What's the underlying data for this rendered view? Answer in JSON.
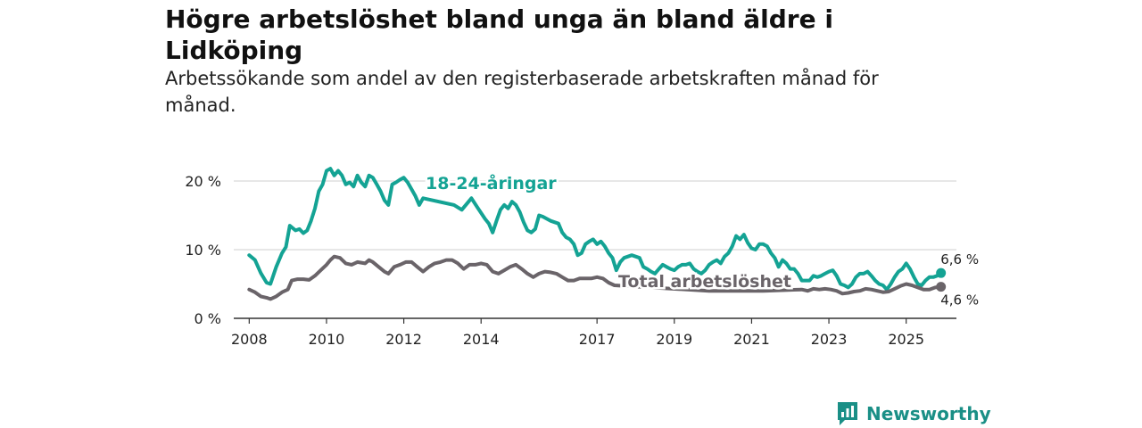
{
  "title": "Högre arbetslöshet bland unga än bland äldre i Lidköping",
  "subtitle": "Arbetssökande som andel av den registerbaserade arbetskraften månad för månad.",
  "brand": {
    "name": "Newsworthy",
    "icon": "newsworthy-logo-icon",
    "color": "#1a8f86"
  },
  "chart_data": {
    "type": "line",
    "title": "Högre arbetslöshet bland unga än bland äldre i Lidköping",
    "xlabel": "",
    "ylabel": "",
    "xlim": [
      2007.6,
      2026.3
    ],
    "ylim": [
      0,
      20
    ],
    "grid": true,
    "y_ticks": [
      {
        "value": 0,
        "label": "0 %"
      },
      {
        "value": 10,
        "label": "10 %"
      },
      {
        "value": 20,
        "label": "20 %"
      }
    ],
    "x_ticks": [
      {
        "value": 2008,
        "label": "2008"
      },
      {
        "value": 2010,
        "label": "2010"
      },
      {
        "value": 2012,
        "label": "2012"
      },
      {
        "value": 2014,
        "label": "2014"
      },
      {
        "value": 2017,
        "label": "2017"
      },
      {
        "value": 2019,
        "label": "2019"
      },
      {
        "value": 2021,
        "label": "2021"
      },
      {
        "value": 2023,
        "label": "2023"
      },
      {
        "value": 2025,
        "label": "2025"
      }
    ],
    "series": [
      {
        "name": "18-24-åringar",
        "color": "#14a394",
        "end_label": "6,6 %",
        "points": [
          [
            2008.0,
            9.2
          ],
          [
            2008.15,
            8.5
          ],
          [
            2008.3,
            6.6
          ],
          [
            2008.45,
            5.2
          ],
          [
            2008.55,
            5.0
          ],
          [
            2008.7,
            7.5
          ],
          [
            2008.85,
            9.5
          ],
          [
            2008.95,
            10.4
          ],
          [
            2009.05,
            13.5
          ],
          [
            2009.2,
            12.8
          ],
          [
            2009.3,
            13.0
          ],
          [
            2009.4,
            12.4
          ],
          [
            2009.5,
            12.8
          ],
          [
            2009.6,
            14.2
          ],
          [
            2009.7,
            16.0
          ],
          [
            2009.8,
            18.5
          ],
          [
            2009.9,
            19.5
          ],
          [
            2010.0,
            21.5
          ],
          [
            2010.1,
            21.8
          ],
          [
            2010.2,
            20.8
          ],
          [
            2010.3,
            21.5
          ],
          [
            2010.4,
            20.8
          ],
          [
            2010.5,
            19.5
          ],
          [
            2010.6,
            19.8
          ],
          [
            2010.7,
            19.2
          ],
          [
            2010.8,
            20.8
          ],
          [
            2010.9,
            19.8
          ],
          [
            2011.0,
            19.2
          ],
          [
            2011.1,
            20.8
          ],
          [
            2011.2,
            20.5
          ],
          [
            2011.3,
            19.5
          ],
          [
            2011.4,
            18.5
          ],
          [
            2011.5,
            17.2
          ],
          [
            2011.6,
            16.5
          ],
          [
            2011.7,
            19.5
          ],
          [
            2011.8,
            19.8
          ],
          [
            2011.9,
            20.2
          ],
          [
            2012.0,
            20.5
          ],
          [
            2012.1,
            19.8
          ],
          [
            2012.2,
            18.8
          ],
          [
            2012.3,
            17.8
          ],
          [
            2012.4,
            16.5
          ],
          [
            2012.5,
            17.5
          ],
          [
            2013.3,
            16.5
          ],
          [
            2013.5,
            15.8
          ],
          [
            2013.75,
            17.5
          ],
          [
            2013.9,
            16.2
          ],
          [
            2014.1,
            14.5
          ],
          [
            2014.2,
            13.8
          ],
          [
            2014.3,
            12.5
          ],
          [
            2014.4,
            14.2
          ],
          [
            2014.5,
            15.8
          ],
          [
            2014.6,
            16.5
          ],
          [
            2014.7,
            16.0
          ],
          [
            2014.8,
            17.0
          ],
          [
            2014.9,
            16.5
          ],
          [
            2015.0,
            15.5
          ],
          [
            2015.1,
            14.0
          ],
          [
            2015.2,
            12.8
          ],
          [
            2015.3,
            12.5
          ],
          [
            2015.4,
            13.0
          ],
          [
            2015.5,
            15.0
          ],
          [
            2015.6,
            14.8
          ],
          [
            2015.7,
            14.5
          ],
          [
            2015.8,
            14.2
          ],
          [
            2015.9,
            14.0
          ],
          [
            2016.0,
            13.8
          ],
          [
            2016.1,
            12.5
          ],
          [
            2016.2,
            11.8
          ],
          [
            2016.3,
            11.5
          ],
          [
            2016.4,
            10.8
          ],
          [
            2016.5,
            9.2
          ],
          [
            2016.6,
            9.5
          ],
          [
            2016.7,
            10.8
          ],
          [
            2016.8,
            11.2
          ],
          [
            2016.9,
            11.5
          ],
          [
            2017.0,
            10.8
          ],
          [
            2017.1,
            11.2
          ],
          [
            2017.2,
            10.5
          ],
          [
            2017.3,
            9.5
          ],
          [
            2017.4,
            8.8
          ],
          [
            2017.5,
            7.0
          ],
          [
            2017.6,
            8.2
          ],
          [
            2017.7,
            8.8
          ],
          [
            2017.8,
            9.0
          ],
          [
            2017.9,
            9.2
          ],
          [
            2018.0,
            9.0
          ],
          [
            2018.1,
            8.8
          ],
          [
            2018.2,
            7.5
          ],
          [
            2018.3,
            7.2
          ],
          [
            2018.4,
            6.8
          ],
          [
            2018.5,
            6.5
          ],
          [
            2018.6,
            7.2
          ],
          [
            2018.7,
            7.8
          ],
          [
            2018.8,
            7.5
          ],
          [
            2018.9,
            7.2
          ],
          [
            2019.0,
            7.0
          ],
          [
            2019.1,
            7.5
          ],
          [
            2019.2,
            7.8
          ],
          [
            2019.3,
            7.8
          ],
          [
            2019.4,
            8.0
          ],
          [
            2019.5,
            7.2
          ],
          [
            2019.6,
            6.8
          ],
          [
            2019.7,
            6.5
          ],
          [
            2019.8,
            7.0
          ],
          [
            2019.9,
            7.8
          ],
          [
            2020.0,
            8.2
          ],
          [
            2020.1,
            8.5
          ],
          [
            2020.2,
            8.0
          ],
          [
            2020.3,
            9.0
          ],
          [
            2020.4,
            9.5
          ],
          [
            2020.5,
            10.5
          ],
          [
            2020.6,
            12.0
          ],
          [
            2020.7,
            11.5
          ],
          [
            2020.8,
            12.2
          ],
          [
            2020.9,
            11.0
          ],
          [
            2021.0,
            10.2
          ],
          [
            2021.1,
            10.0
          ],
          [
            2021.2,
            10.8
          ],
          [
            2021.3,
            10.8
          ],
          [
            2021.4,
            10.5
          ],
          [
            2021.5,
            9.5
          ],
          [
            2021.6,
            8.8
          ],
          [
            2021.7,
            7.5
          ],
          [
            2021.8,
            8.5
          ],
          [
            2021.9,
            8.0
          ],
          [
            2022.0,
            7.2
          ],
          [
            2022.1,
            7.2
          ],
          [
            2022.2,
            6.5
          ],
          [
            2022.3,
            5.5
          ],
          [
            2022.4,
            5.5
          ],
          [
            2022.5,
            5.5
          ],
          [
            2022.6,
            6.2
          ],
          [
            2022.7,
            6.0
          ],
          [
            2022.8,
            6.2
          ],
          [
            2022.9,
            6.5
          ],
          [
            2023.0,
            6.8
          ],
          [
            2023.1,
            7.0
          ],
          [
            2023.2,
            6.2
          ],
          [
            2023.3,
            5.0
          ],
          [
            2023.4,
            4.8
          ],
          [
            2023.5,
            4.5
          ],
          [
            2023.6,
            5.0
          ],
          [
            2023.7,
            6.0
          ],
          [
            2023.8,
            6.5
          ],
          [
            2023.9,
            6.5
          ],
          [
            2024.0,
            6.8
          ],
          [
            2024.1,
            6.2
          ],
          [
            2024.2,
            5.5
          ],
          [
            2024.3,
            5.0
          ],
          [
            2024.4,
            4.8
          ],
          [
            2024.5,
            4.2
          ],
          [
            2024.6,
            5.0
          ],
          [
            2024.7,
            6.0
          ],
          [
            2024.8,
            6.8
          ],
          [
            2024.9,
            7.2
          ],
          [
            2025.0,
            8.0
          ],
          [
            2025.1,
            7.2
          ],
          [
            2025.2,
            6.0
          ],
          [
            2025.3,
            5.0
          ],
          [
            2025.4,
            4.8
          ],
          [
            2025.5,
            5.5
          ],
          [
            2025.6,
            6.0
          ],
          [
            2025.7,
            6.0
          ],
          [
            2025.8,
            6.2
          ],
          [
            2025.9,
            6.6
          ]
        ]
      },
      {
        "name": "Total arbetslöshet",
        "color": "#6a6469",
        "end_label": "4,6 %",
        "points": [
          [
            2008.0,
            4.2
          ],
          [
            2008.15,
            3.8
          ],
          [
            2008.3,
            3.2
          ],
          [
            2008.45,
            3.0
          ],
          [
            2008.55,
            2.8
          ],
          [
            2008.7,
            3.2
          ],
          [
            2008.85,
            3.8
          ],
          [
            2009.0,
            4.2
          ],
          [
            2009.1,
            5.5
          ],
          [
            2009.25,
            5.7
          ],
          [
            2009.4,
            5.7
          ],
          [
            2009.55,
            5.6
          ],
          [
            2009.7,
            6.2
          ],
          [
            2009.85,
            7.0
          ],
          [
            2010.0,
            7.8
          ],
          [
            2010.1,
            8.5
          ],
          [
            2010.2,
            9.0
          ],
          [
            2010.35,
            8.8
          ],
          [
            2010.5,
            8.0
          ],
          [
            2010.65,
            7.8
          ],
          [
            2010.8,
            8.2
          ],
          [
            2011.0,
            8.0
          ],
          [
            2011.1,
            8.5
          ],
          [
            2011.2,
            8.2
          ],
          [
            2011.35,
            7.5
          ],
          [
            2011.5,
            6.8
          ],
          [
            2011.6,
            6.5
          ],
          [
            2011.75,
            7.5
          ],
          [
            2011.9,
            7.8
          ],
          [
            2012.05,
            8.2
          ],
          [
            2012.2,
            8.2
          ],
          [
            2012.35,
            7.5
          ],
          [
            2012.5,
            6.8
          ],
          [
            2012.65,
            7.5
          ],
          [
            2012.8,
            8.0
          ],
          [
            2012.95,
            8.2
          ],
          [
            2013.1,
            8.5
          ],
          [
            2013.25,
            8.5
          ],
          [
            2013.4,
            8.0
          ],
          [
            2013.55,
            7.2
          ],
          [
            2013.7,
            7.8
          ],
          [
            2013.85,
            7.8
          ],
          [
            2014.0,
            8.0
          ],
          [
            2014.15,
            7.8
          ],
          [
            2014.3,
            6.8
          ],
          [
            2014.45,
            6.5
          ],
          [
            2014.6,
            7.0
          ],
          [
            2014.75,
            7.5
          ],
          [
            2014.9,
            7.8
          ],
          [
            2015.05,
            7.2
          ],
          [
            2015.2,
            6.5
          ],
          [
            2015.35,
            6.0
          ],
          [
            2015.5,
            6.5
          ],
          [
            2015.65,
            6.8
          ],
          [
            2015.8,
            6.7
          ],
          [
            2015.95,
            6.5
          ],
          [
            2016.1,
            6.0
          ],
          [
            2016.25,
            5.5
          ],
          [
            2016.4,
            5.5
          ],
          [
            2016.55,
            5.8
          ],
          [
            2016.7,
            5.8
          ],
          [
            2016.85,
            5.8
          ],
          [
            2017.0,
            6.0
          ],
          [
            2017.15,
            5.8
          ],
          [
            2017.3,
            5.2
          ],
          [
            2017.45,
            4.8
          ],
          [
            2019.9,
            4.0
          ],
          [
            2021.3,
            4.0
          ],
          [
            2022.3,
            4.2
          ],
          [
            2022.45,
            4.0
          ],
          [
            2022.6,
            4.3
          ],
          [
            2022.75,
            4.2
          ],
          [
            2022.9,
            4.3
          ],
          [
            2023.05,
            4.2
          ],
          [
            2023.2,
            4.0
          ],
          [
            2023.35,
            3.6
          ],
          [
            2023.5,
            3.7
          ],
          [
            2023.65,
            3.9
          ],
          [
            2023.8,
            4.0
          ],
          [
            2023.95,
            4.3
          ],
          [
            2024.1,
            4.2
          ],
          [
            2024.25,
            4.0
          ],
          [
            2024.4,
            3.8
          ],
          [
            2024.55,
            3.9
          ],
          [
            2024.7,
            4.3
          ],
          [
            2024.85,
            4.7
          ],
          [
            2025.0,
            5.0
          ],
          [
            2025.15,
            4.8
          ],
          [
            2025.3,
            4.5
          ],
          [
            2025.45,
            4.2
          ],
          [
            2025.6,
            4.2
          ],
          [
            2025.75,
            4.5
          ],
          [
            2025.9,
            4.6
          ]
        ]
      }
    ]
  }
}
